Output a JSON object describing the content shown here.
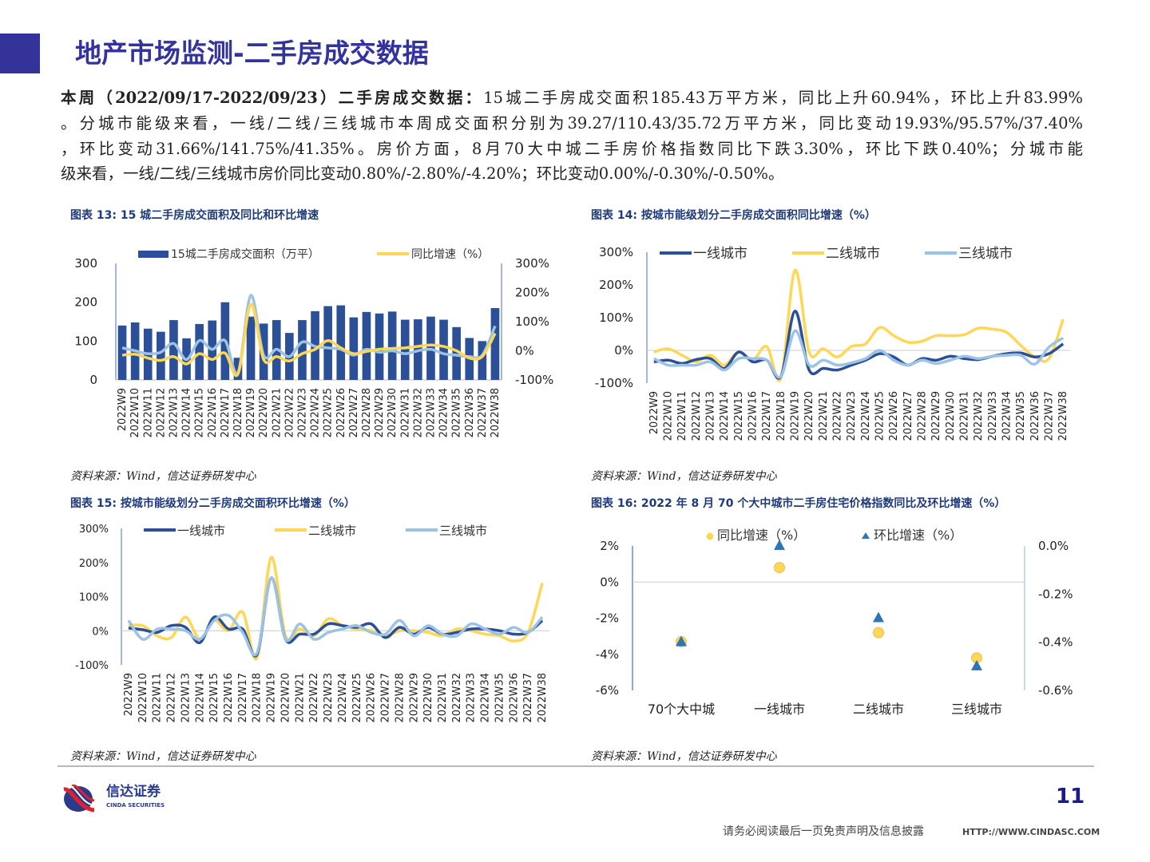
{
  "header": {
    "title": "地产市场监测-二手房成交数据"
  },
  "summary": {
    "lead": "本周（2022/09/17-2022/09/23）二手房成交数据：",
    "line1": "15城二手房成交面积185.43万平方米，同比上升60.94%，环比上升83.99%",
    "line2": "。分城市能级来看，一线/二线/三线城市本周成交面积分别为39.27/110.43/35.72万平方米，同比变动19.93%/95.57%/37.40%",
    "line3": "，环比变动31.66%/141.75%/41.35%。房价方面，8月70大中城二手房价格指数同比下跌3.30%，环比下跌0.40%；分城市能",
    "line4": "级来看，一线/二线/三线城市房价同比变动0.80%/-2.80%/-4.20%；环比变动0.00%/-0.30%/-0.50%。"
  },
  "figures": [
    {
      "title": "图表 13:  15 城二手房成交面积及同比和环比增速",
      "source": "资料来源：Wind，信达证券研发中心"
    },
    {
      "title": "图表 14:  按城市能级划分二手房成交面积同比增速（%）",
      "source": "资料来源：Wind，信达证券研发中心"
    },
    {
      "title": "图表 15:  按城市能级划分二手房成交面积环比增速（%）",
      "source": "资料来源：Wind，信达证券研发中心"
    },
    {
      "title": "图表 16:  2022 年 8 月 70 个大中城市二手房住宅价格指数同比及环比增速（%）",
      "source": "资料来源：Wind，信达证券研发中心"
    }
  ],
  "colors": {
    "dark_blue": "#2b5097",
    "yellow": "#ffd757",
    "light_blue": "#9cc3e6",
    "tri_blue": "#2e75b6",
    "title_blue": "#3333a0"
  },
  "chart_data": [
    {
      "type": "bar+line",
      "categories": [
        "2022W9",
        "2022W10",
        "2022W11",
        "2022W12",
        "2022W13",
        "2022W14",
        "2022W15",
        "2022W16",
        "2022W17",
        "2022W18",
        "2022W19",
        "2022W20",
        "2022W21",
        "2022W22",
        "2022W23",
        "2022W24",
        "2022W25",
        "2022W26",
        "2022W27",
        "2022W28",
        "2022W29",
        "2022W30",
        "2022W31",
        "2022W32",
        "2022W33",
        "2022W34",
        "2022W35",
        "2022W36",
        "2022W37",
        "2022W38"
      ],
      "y_left": {
        "ticks": [
          "0",
          "100",
          "200",
          "300"
        ],
        "range": [
          0,
          300
        ]
      },
      "y_right": {
        "ticks": [
          "-100%",
          "0%",
          "100%",
          "200%",
          "300%"
        ],
        "range": [
          -100,
          300
        ]
      },
      "legend_position": "top",
      "series": [
        {
          "name": "15城二手房成交面积（万平）",
          "kind": "bar",
          "axis": "left",
          "color": "#2b5097",
          "values": [
            140,
            148,
            132,
            124,
            154,
            107,
            144,
            153,
            200,
            57,
            163,
            145,
            154,
            121,
            154,
            177,
            190,
            192,
            161,
            175,
            171,
            176,
            155,
            156,
            163,
            155,
            136,
            108,
            100,
            185
          ]
        },
        {
          "name": "同比增速（%）",
          "kind": "line",
          "axis": "right",
          "color": "#ffd757",
          "values": [
            -15,
            -12,
            -25,
            -33,
            -20,
            -45,
            -10,
            -30,
            -8,
            -80,
            160,
            -30,
            -20,
            -35,
            -10,
            5,
            35,
            10,
            -10,
            -2,
            5,
            8,
            10,
            15,
            20,
            15,
            0,
            -25,
            -20,
            60
          ]
        },
        {
          "kind": "line",
          "axis": "right",
          "color": "#9cc3e6",
          "values": [
            10,
            0,
            -10,
            -5,
            25,
            -30,
            35,
            5,
            35,
            -75,
            190,
            -15,
            5,
            -20,
            30,
            15,
            10,
            5,
            -15,
            5,
            -5,
            0,
            -10,
            0,
            5,
            -10,
            -15,
            -20,
            -15,
            85
          ]
        }
      ]
    },
    {
      "type": "line",
      "categories": [
        "2022W9",
        "2022W10",
        "2022W11",
        "2022W12",
        "2022W13",
        "2022W14",
        "2022W15",
        "2022W16",
        "2022W17",
        "2022W18",
        "2022W19",
        "2022W20",
        "2022W21",
        "2022W22",
        "2022W23",
        "2022W24",
        "2022W25",
        "2022W26",
        "2022W27",
        "2022W28",
        "2022W29",
        "2022W30",
        "2022W31",
        "2022W32",
        "2022W33",
        "2022W34",
        "2022W35",
        "2022W36",
        "2022W37",
        "2022W38"
      ],
      "y": {
        "ticks": [
          "-100%",
          "0%",
          "100%",
          "200%",
          "300%"
        ],
        "range": [
          -100,
          300
        ]
      },
      "legend_position": "top",
      "series": [
        {
          "name": "一线城市",
          "color": "#2b5097",
          "values": [
            -35,
            -30,
            -40,
            -28,
            -25,
            -55,
            -5,
            -35,
            -30,
            -80,
            120,
            -60,
            -55,
            -60,
            -45,
            -30,
            -10,
            -20,
            -45,
            -25,
            -30,
            -18,
            -25,
            -28,
            -18,
            -10,
            -8,
            -20,
            -10,
            20
          ]
        },
        {
          "name": "二线城市",
          "color": "#ffd757",
          "values": [
            -5,
            5,
            -15,
            -35,
            -15,
            -45,
            -5,
            -30,
            12,
            -85,
            245,
            -5,
            5,
            -20,
            12,
            20,
            70,
            45,
            25,
            28,
            45,
            45,
            48,
            68,
            65,
            55,
            15,
            -20,
            -25,
            95
          ]
        },
        {
          "name": "三线城市",
          "color": "#9cc3e6",
          "values": [
            -25,
            -45,
            -45,
            -45,
            -35,
            -60,
            -25,
            -25,
            -30,
            -80,
            60,
            -45,
            -30,
            -45,
            -38,
            -25,
            0,
            -30,
            -45,
            -30,
            -40,
            -30,
            -18,
            -25,
            -18,
            -15,
            -15,
            -42,
            10,
            38
          ]
        }
      ]
    },
    {
      "type": "line",
      "categories": [
        "2022W9",
        "2022W10",
        "2022W11",
        "2022W12",
        "2022W13",
        "2022W14",
        "2022W15",
        "2022W16",
        "2022W17",
        "2022W18",
        "2022W19",
        "2022W20",
        "2022W21",
        "2022W22",
        "2022W23",
        "2022W24",
        "2022W25",
        "2022W26",
        "2022W27",
        "2022W28",
        "2022W29",
        "2022W30",
        "2022W31",
        "2022W32",
        "2022W33",
        "2022W34",
        "2022W35",
        "2022W36",
        "2022W37",
        "2022W38"
      ],
      "y": {
        "ticks": [
          "-100%",
          "0%",
          "100%",
          "200%",
          "300%"
        ],
        "range": [
          -100,
          300
        ]
      },
      "legend_position": "top",
      "series": [
        {
          "name": "一线城市",
          "color": "#2b5097",
          "values": [
            8,
            3,
            -5,
            15,
            10,
            -35,
            40,
            5,
            5,
            -70,
            155,
            -25,
            -10,
            -10,
            20,
            15,
            10,
            20,
            -20,
            10,
            -10,
            10,
            -10,
            -5,
            5,
            5,
            0,
            -10,
            -5,
            30
          ]
        },
        {
          "name": "二线城市",
          "color": "#ffd757",
          "values": [
            15,
            15,
            -15,
            -20,
            40,
            -25,
            30,
            0,
            55,
            -80,
            215,
            -15,
            5,
            -15,
            35,
            15,
            5,
            0,
            -15,
            0,
            0,
            -5,
            -15,
            5,
            0,
            -10,
            -15,
            -30,
            -5,
            140
          ]
        },
        {
          "name": "三线城市",
          "color": "#9cc3e6",
          "values": [
            30,
            -25,
            5,
            5,
            0,
            -25,
            30,
            45,
            -5,
            -65,
            155,
            -25,
            20,
            -25,
            -5,
            5,
            15,
            -5,
            -10,
            30,
            -15,
            15,
            -10,
            -15,
            20,
            5,
            -10,
            10,
            -5,
            40
          ]
        }
      ]
    },
    {
      "type": "scatter",
      "categories": [
        "70个大中城",
        "一线城市",
        "二线城市",
        "三线城市"
      ],
      "y_left": {
        "ticks": [
          "-6%",
          "-4%",
          "-2%",
          "0%",
          "2%"
        ],
        "range": [
          -6,
          2
        ]
      },
      "y_right": {
        "ticks": [
          "-0.6%",
          "-0.4%",
          "-0.2%",
          "0.0%"
        ],
        "range": [
          -0.6,
          0.0
        ]
      },
      "legend_position": "top",
      "series": [
        {
          "name": "同比增速（%）",
          "marker": "circle",
          "axis": "left",
          "color": "#ffd757",
          "values": [
            -3.3,
            0.8,
            -2.8,
            -4.2
          ]
        },
        {
          "name": "环比增速（%）",
          "marker": "triangle",
          "axis": "right",
          "color": "#2e75b6",
          "values": [
            -0.4,
            0.0,
            -0.3,
            -0.5
          ]
        }
      ]
    }
  ],
  "footer": {
    "logo_text": "信达证券",
    "logo_subtext": "CINDA SECURITIES",
    "page_number": "11",
    "disclaimer": "请务必阅读最后一页免责声明及信息披露",
    "url": "HTTP://WWW.CINDASC.COM"
  }
}
